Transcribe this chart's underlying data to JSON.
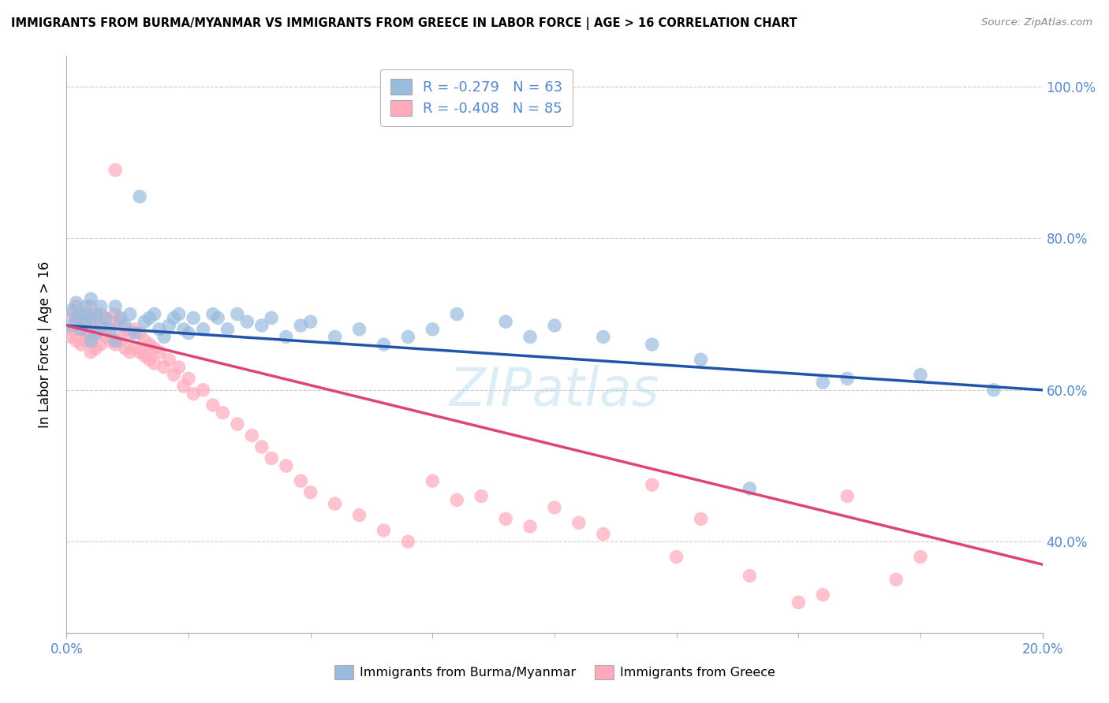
{
  "title": "IMMIGRANTS FROM BURMA/MYANMAR VS IMMIGRANTS FROM GREECE IN LABOR FORCE | AGE > 16 CORRELATION CHART",
  "source": "Source: ZipAtlas.com",
  "ylabel": "In Labor Force | Age > 16",
  "legend_blue": {
    "label": "Immigrants from Burma/Myanmar",
    "R": -0.279,
    "N": 63
  },
  "legend_pink": {
    "label": "Immigrants from Greece",
    "R": -0.408,
    "N": 85
  },
  "watermark": "ZIPatlas",
  "blue_color": "#99BBDD",
  "pink_color": "#FFAABB",
  "blue_line_color": "#2255AA",
  "pink_line_color": "#DD4477",
  "background_color": "#FFFFFF",
  "grid_color": "#CCCCCC",
  "x_min": 0.0,
  "x_max": 0.2,
  "y_min": 0.28,
  "y_max": 1.04,
  "blue_scatter_x": [
    0.001,
    0.001,
    0.002,
    0.002,
    0.003,
    0.003,
    0.004,
    0.004,
    0.005,
    0.005,
    0.005,
    0.006,
    0.006,
    0.007,
    0.007,
    0.008,
    0.009,
    0.01,
    0.01,
    0.011,
    0.012,
    0.013,
    0.014,
    0.015,
    0.016,
    0.017,
    0.018,
    0.019,
    0.02,
    0.021,
    0.022,
    0.023,
    0.024,
    0.025,
    0.026,
    0.028,
    0.03,
    0.031,
    0.033,
    0.035,
    0.037,
    0.04,
    0.042,
    0.045,
    0.048,
    0.05,
    0.055,
    0.06,
    0.065,
    0.07,
    0.075,
    0.08,
    0.09,
    0.095,
    0.1,
    0.11,
    0.12,
    0.13,
    0.14,
    0.155,
    0.16,
    0.175,
    0.19
  ],
  "blue_scatter_y": [
    0.685,
    0.705,
    0.715,
    0.695,
    0.7,
    0.68,
    0.71,
    0.69,
    0.695,
    0.72,
    0.665,
    0.7,
    0.675,
    0.71,
    0.685,
    0.695,
    0.68,
    0.71,
    0.665,
    0.695,
    0.685,
    0.7,
    0.675,
    0.855,
    0.69,
    0.695,
    0.7,
    0.68,
    0.67,
    0.685,
    0.695,
    0.7,
    0.68,
    0.675,
    0.695,
    0.68,
    0.7,
    0.695,
    0.68,
    0.7,
    0.69,
    0.685,
    0.695,
    0.67,
    0.685,
    0.69,
    0.67,
    0.68,
    0.66,
    0.67,
    0.68,
    0.7,
    0.69,
    0.67,
    0.685,
    0.67,
    0.66,
    0.64,
    0.47,
    0.61,
    0.615,
    0.62,
    0.6
  ],
  "pink_scatter_x": [
    0.001,
    0.001,
    0.001,
    0.002,
    0.002,
    0.002,
    0.003,
    0.003,
    0.003,
    0.004,
    0.004,
    0.004,
    0.005,
    0.005,
    0.005,
    0.005,
    0.006,
    0.006,
    0.006,
    0.007,
    0.007,
    0.007,
    0.008,
    0.008,
    0.009,
    0.009,
    0.01,
    0.01,
    0.01,
    0.01,
    0.011,
    0.011,
    0.012,
    0.012,
    0.013,
    0.013,
    0.014,
    0.014,
    0.015,
    0.015,
    0.016,
    0.016,
    0.017,
    0.017,
    0.018,
    0.018,
    0.019,
    0.02,
    0.021,
    0.022,
    0.023,
    0.024,
    0.025,
    0.026,
    0.028,
    0.03,
    0.032,
    0.035,
    0.038,
    0.04,
    0.042,
    0.045,
    0.048,
    0.05,
    0.055,
    0.06,
    0.065,
    0.07,
    0.075,
    0.08,
    0.085,
    0.09,
    0.095,
    0.1,
    0.105,
    0.11,
    0.12,
    0.125,
    0.13,
    0.14,
    0.15,
    0.155,
    0.16,
    0.17,
    0.175
  ],
  "pink_scatter_y": [
    0.7,
    0.68,
    0.67,
    0.71,
    0.69,
    0.665,
    0.695,
    0.68,
    0.66,
    0.7,
    0.675,
    0.665,
    0.71,
    0.69,
    0.67,
    0.65,
    0.695,
    0.675,
    0.655,
    0.7,
    0.68,
    0.66,
    0.695,
    0.67,
    0.69,
    0.665,
    0.7,
    0.68,
    0.66,
    0.89,
    0.69,
    0.665,
    0.68,
    0.655,
    0.675,
    0.65,
    0.68,
    0.655,
    0.675,
    0.65,
    0.665,
    0.645,
    0.66,
    0.64,
    0.655,
    0.635,
    0.65,
    0.63,
    0.64,
    0.62,
    0.63,
    0.605,
    0.615,
    0.595,
    0.6,
    0.58,
    0.57,
    0.555,
    0.54,
    0.525,
    0.51,
    0.5,
    0.48,
    0.465,
    0.45,
    0.435,
    0.415,
    0.4,
    0.48,
    0.455,
    0.46,
    0.43,
    0.42,
    0.445,
    0.425,
    0.41,
    0.475,
    0.38,
    0.43,
    0.355,
    0.32,
    0.33,
    0.46,
    0.35,
    0.38
  ]
}
